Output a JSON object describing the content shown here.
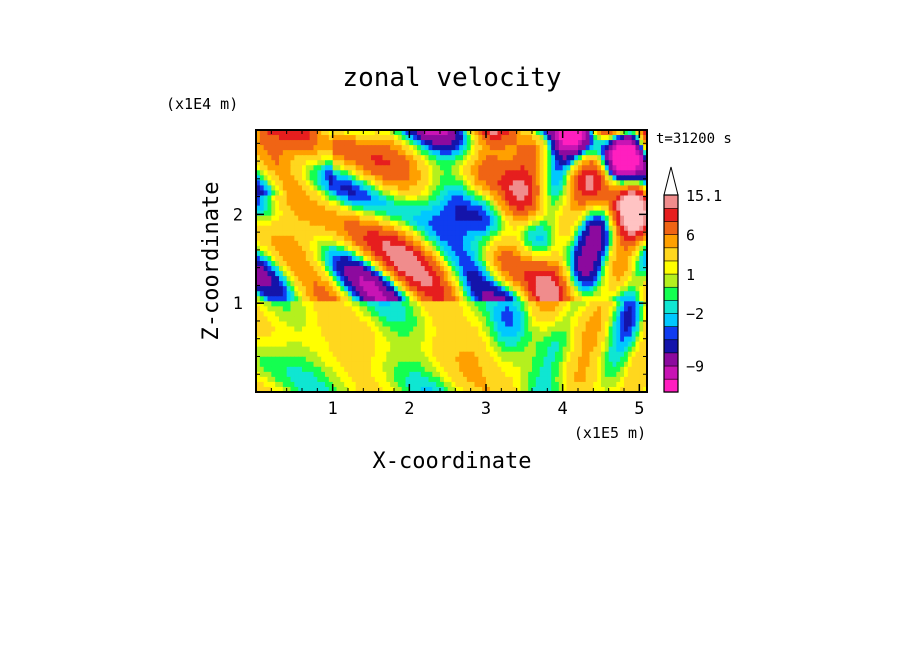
{
  "chart_data": {
    "type": "heatmap",
    "title": "zonal velocity",
    "xlabel": "X-coordinate",
    "ylabel": "Z-coordinate",
    "x_multiplier": "(x1E5 m)",
    "y_multiplier": "(x1E4 m)",
    "time_label": "t=31200 s",
    "xlim": [
      0,
      5.1
    ],
    "ylim": [
      0,
      2.95
    ],
    "x_ticks": [
      1,
      2,
      3,
      4,
      5
    ],
    "y_ticks": [
      1,
      2
    ],
    "x_tick_labels": [
      "1",
      "2",
      "3",
      "4",
      "5"
    ],
    "y_tick_labels": [
      "1",
      "2"
    ],
    "colorbar": {
      "levels": [
        -15,
        -12,
        -9,
        -6,
        -4,
        -3,
        -2,
        -1,
        0,
        1,
        2,
        4,
        6,
        9,
        12,
        15.1
      ],
      "colors": [
        "#ff1fbf",
        "#c814b4",
        "#8c0a9e",
        "#1414aa",
        "#0f3cf0",
        "#00c8ff",
        "#0fe6d2",
        "#14ff50",
        "#b4f01e",
        "#ffff00",
        "#ffd71e",
        "#ffa000",
        "#f06414",
        "#e61e1e",
        "#f08c8c",
        "#ffc3c3"
      ],
      "labels": [
        {
          "value": 15.1,
          "text": "15.1"
        },
        {
          "value": 6,
          "text": "6"
        },
        {
          "value": 1,
          "text": "1"
        },
        {
          "value": -2,
          "text": "−2"
        },
        {
          "value": -9,
          "text": "−9"
        }
      ],
      "extend": "max"
    },
    "field": {
      "cols": 102,
      "rows": 52,
      "description_of_values": "zonal velocity in m/s on regular grid"
    }
  }
}
